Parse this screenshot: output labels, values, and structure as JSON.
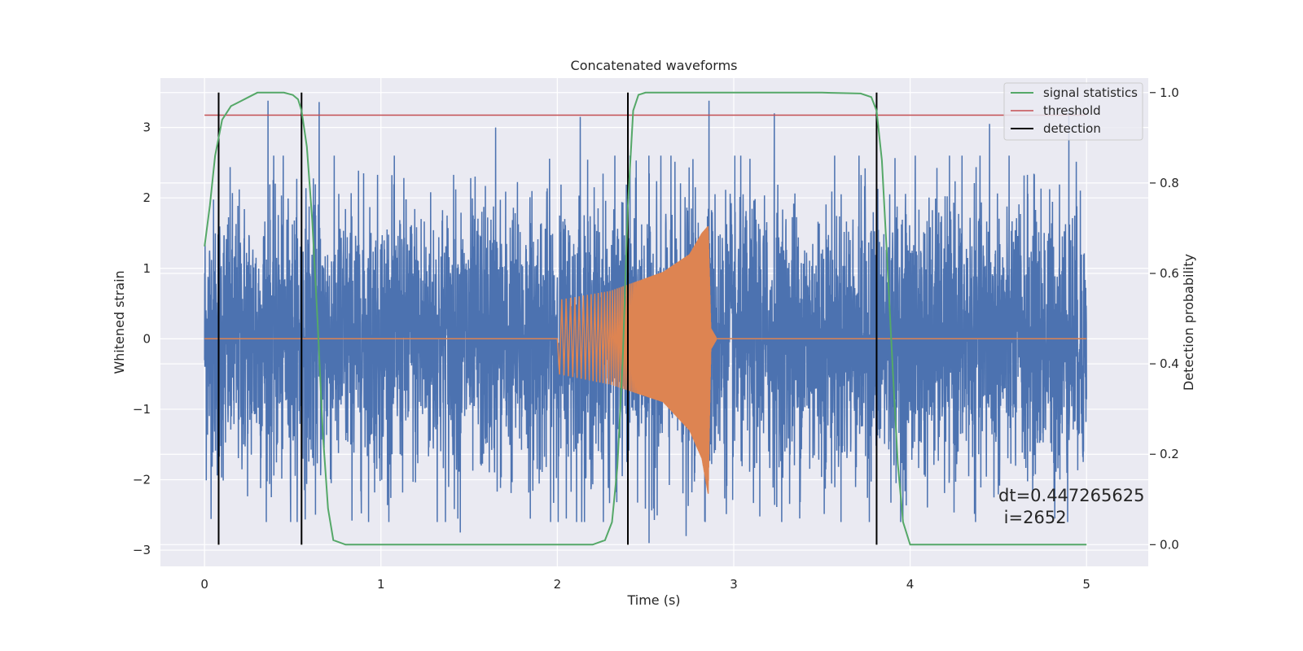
{
  "chart_data": {
    "type": "line",
    "title": "Concatenated waveforms",
    "xlabel": "Time (s)",
    "ylabel": "Whitened strain",
    "y2label": "Detection probability",
    "xlim": [
      -0.25,
      5.35
    ],
    "ylim": [
      -3.23,
      3.7
    ],
    "y2lim": [
      -0.048,
      1.032
    ],
    "x_ticks": [
      0,
      1,
      2,
      3,
      4,
      5
    ],
    "x_tick_labels": [
      "0",
      "1",
      "2",
      "3",
      "4",
      "5"
    ],
    "y_ticks": [
      -3,
      -2,
      -1,
      0,
      1,
      2,
      3
    ],
    "y_tick_labels": [
      "−3",
      "−2",
      "−1",
      "0",
      "1",
      "2",
      "3"
    ],
    "y2_ticks": [
      0.0,
      0.2,
      0.4,
      0.6,
      0.8,
      1.0
    ],
    "y2_tick_labels": [
      "0.0",
      "0.2",
      "0.4",
      "0.6",
      "0.8",
      "1.0"
    ],
    "grid": true,
    "legend_position": "top-right",
    "colors": {
      "noise": "#4c72b0",
      "injection": "#dd8452",
      "statistic": "#55a868",
      "threshold": "#c44e52",
      "detection": "#000000",
      "axes_bg": "#eaeaf2",
      "grid": "#ffffff"
    },
    "series": [
      {
        "name": "",
        "role": "noise",
        "axis": "left",
        "x_range": [
          0,
          5
        ],
        "typical_abs": 1.25,
        "extremes": [
          {
            "x": 0.36,
            "y": 3.38
          },
          {
            "x": 0.65,
            "y": 3.36
          },
          {
            "x": 1.45,
            "y": -2.75
          },
          {
            "x": 1.65,
            "y": 3.0
          },
          {
            "x": 2.13,
            "y": 3.15
          },
          {
            "x": 2.86,
            "y": 3.38
          },
          {
            "x": 3.23,
            "y": 3.2
          },
          {
            "x": 4.45,
            "y": 3.05
          },
          {
            "x": 4.9,
            "y": 3.25
          },
          {
            "x": 4.82,
            "y": -2.55
          },
          {
            "x": 2.52,
            "y": -2.9
          },
          {
            "x": 2.73,
            "y": -2.8
          }
        ]
      },
      {
        "name": "",
        "role": "injection",
        "axis": "left",
        "x": [
          0,
          2.0,
          2.0,
          2.3,
          2.6,
          2.75,
          2.82,
          2.855,
          2.87,
          2.9,
          3.0,
          5.0
        ],
        "envelope_upper": [
          0,
          0,
          0.55,
          0.68,
          0.95,
          1.2,
          1.5,
          1.6,
          0.15,
          0.02,
          0,
          0
        ],
        "envelope_lower": [
          0,
          0,
          -0.5,
          -0.65,
          -0.9,
          -1.3,
          -1.7,
          -2.2,
          -0.15,
          -0.02,
          0,
          0
        ]
      },
      {
        "name": "signal statistics",
        "role": "statistic",
        "axis": "right",
        "x": [
          0,
          0.03,
          0.06,
          0.1,
          0.15,
          0.2,
          0.25,
          0.3,
          0.35,
          0.4,
          0.45,
          0.5,
          0.53,
          0.55,
          0.58,
          0.61,
          0.64,
          0.67,
          0.7,
          0.73,
          0.8,
          1.5,
          2.2,
          2.27,
          2.31,
          2.34,
          2.37,
          2.4,
          2.43,
          2.46,
          2.5,
          2.6,
          3.0,
          3.5,
          3.72,
          3.78,
          3.81,
          3.84,
          3.87,
          3.9,
          3.93,
          3.96,
          4.0,
          4.5,
          5.0
        ],
        "y": [
          0.66,
          0.75,
          0.86,
          0.94,
          0.97,
          0.98,
          0.99,
          1.0,
          1.0,
          1.0,
          1.0,
          0.995,
          0.985,
          0.96,
          0.88,
          0.72,
          0.5,
          0.25,
          0.08,
          0.01,
          0.0,
          0.0,
          0.0,
          0.01,
          0.05,
          0.17,
          0.4,
          0.75,
          0.96,
          0.995,
          1.0,
          1.0,
          1.0,
          1.0,
          0.998,
          0.99,
          0.96,
          0.85,
          0.63,
          0.4,
          0.18,
          0.05,
          0.0,
          0.0,
          0.0
        ]
      },
      {
        "name": "threshold",
        "role": "threshold",
        "axis": "right",
        "x": [
          0,
          5
        ],
        "y": [
          0.95,
          0.95
        ]
      }
    ],
    "detections": {
      "name": "detection",
      "x": [
        0.08,
        0.55,
        2.4,
        3.81
      ]
    },
    "annotation": {
      "lines": [
        "dt=0.447265625",
        " i=2652"
      ],
      "x": 4.5,
      "y": -2.18
    }
  }
}
